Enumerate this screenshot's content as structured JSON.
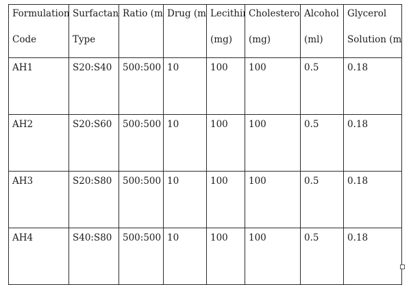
{
  "table": {
    "headers": [
      {
        "line1": "Formulation",
        "line2": "Code"
      },
      {
        "line1": "Surfactant",
        "line2": "Type"
      },
      {
        "line1": "Ratio (mg",
        "line2": ""
      },
      {
        "line1": "Drug (mg",
        "line2": ""
      },
      {
        "line1": "Lecithin",
        "line2": "(mg)"
      },
      {
        "line1": "Cholesterol",
        "line2": "(mg)"
      },
      {
        "line1": "Alcohol",
        "line2": "(ml)"
      },
      {
        "line1": "Glycerol",
        "line2": "Solution (ml"
      }
    ],
    "rows": [
      [
        "AH1",
        "S20:S40",
        "500:500",
        "10",
        "100",
        "100",
        "0.5",
        "0.18"
      ],
      [
        "AH2",
        "S20:S60",
        "500:500",
        "10",
        "100",
        "100",
        "0.5",
        "0.18"
      ],
      [
        "AH3",
        "S20:S80",
        "500:500",
        "10",
        "100",
        "100",
        "0.5",
        "0.18"
      ],
      [
        "AH4",
        "S40:S80",
        "500:500",
        "10",
        "100",
        "100",
        "0.5",
        "0.18"
      ]
    ]
  }
}
